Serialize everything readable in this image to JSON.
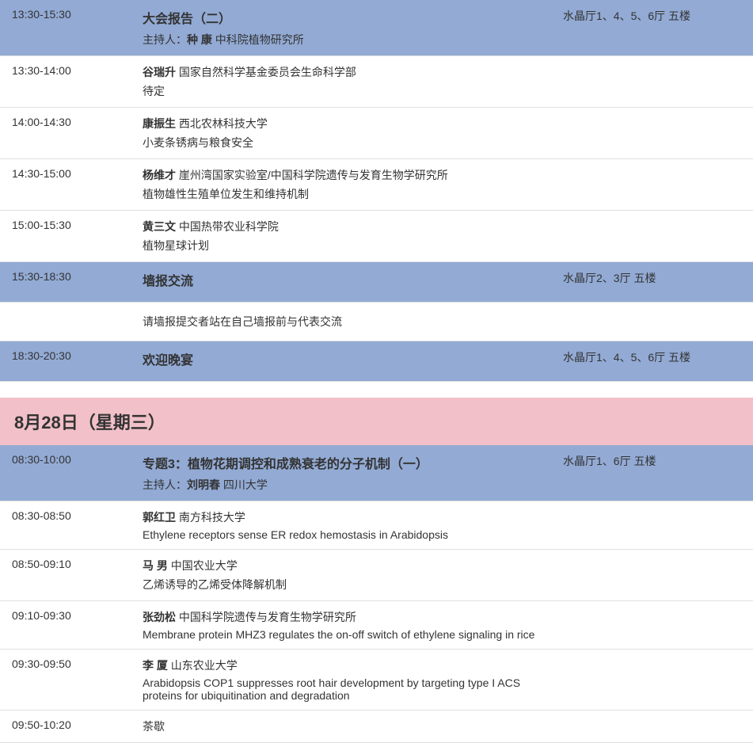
{
  "colors": {
    "session_bg": "#92aad4",
    "date_bg": "#f1c0c8",
    "row_border": "#e0e0e0",
    "text": "#333333",
    "bg": "#ffffff"
  },
  "sessions": [
    {
      "kind": "session",
      "time": "13:30-15:30",
      "title": "大会报告（二）",
      "host_label": "主持人：",
      "host_name": "种 康",
      "host_affil": "中科院植物研究所",
      "location": "水晶厅1、4、5、6厅 五楼"
    },
    {
      "kind": "talk",
      "time": "13:30-14:00",
      "speaker": "谷瑞升",
      "affil": "国家自然科学基金委员会生命科学部",
      "title": "待定"
    },
    {
      "kind": "talk",
      "time": "14:00-14:30",
      "speaker": "康振生",
      "affil": "西北农林科技大学",
      "title": "小麦条锈病与粮食安全"
    },
    {
      "kind": "talk",
      "time": "14:30-15:00",
      "speaker": "杨维才",
      "affil": "崖州湾国家实验室/中国科学院遗传与发育生物学研究所",
      "title": "植物雄性生殖单位发生和维持机制"
    },
    {
      "kind": "talk",
      "time": "15:00-15:30",
      "speaker": "黄三文",
      "affil": "中国热带农业科学院",
      "title": "植物星球计划"
    },
    {
      "kind": "session-simple",
      "time": "15:30-18:30",
      "title": "墙报交流",
      "location": "水晶厅2、3厅 五楼"
    },
    {
      "kind": "note",
      "text": "请墙报提交者站在自己墙报前与代表交流"
    },
    {
      "kind": "session-simple",
      "time": "18:30-20:30",
      "title": "欢迎晚宴",
      "location": "水晶厅1、4、5、6厅 五楼"
    },
    {
      "kind": "date-header",
      "text": "8月28日（星期三）"
    },
    {
      "kind": "session",
      "time": "08:30-10:00",
      "title": "专题3：植物花期调控和成熟衰老的分子机制（一）",
      "host_label": "主持人：",
      "host_name": "刘明春",
      "host_affil": "四川大学",
      "location": "水晶厅1、6厅 五楼"
    },
    {
      "kind": "talk",
      "time": "08:30-08:50",
      "speaker": "郭红卫",
      "affil": "南方科技大学",
      "title": "Ethylene receptors sense ER redox hemostasis in Arabidopsis"
    },
    {
      "kind": "talk",
      "time": "08:50-09:10",
      "speaker": "马 男",
      "affil": "中国农业大学",
      "title": "乙烯诱导的乙烯受体降解机制"
    },
    {
      "kind": "talk",
      "time": "09:10-09:30",
      "speaker": "张劲松",
      "affil": "中国科学院遗传与发育生物学研究所",
      "title": "Membrane protein MHZ3 regulates the on-off switch of ethylene signaling in rice"
    },
    {
      "kind": "talk",
      "time": "09:30-09:50",
      "speaker": "李 厦",
      "affil": "山东农业大学",
      "title": "Arabidopsis COP1 suppresses root hair development by targeting type I ACS proteins for ubiquitination and degradation"
    },
    {
      "kind": "talk-simple",
      "time": "09:50-10:20",
      "title": "茶歇"
    }
  ]
}
